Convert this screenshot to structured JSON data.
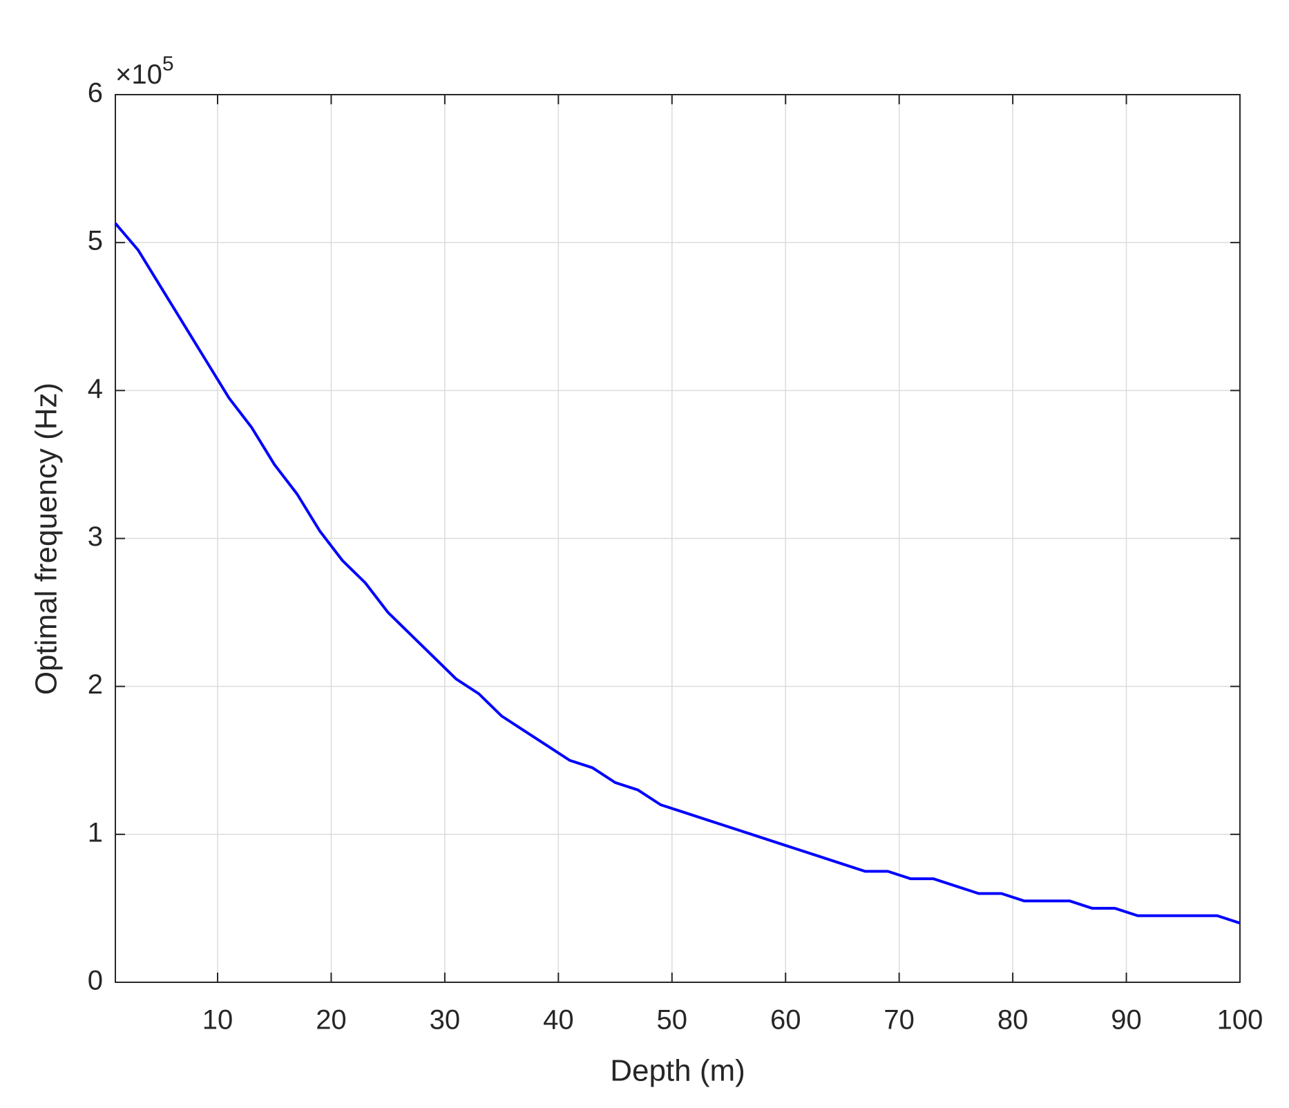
{
  "chart_data": {
    "type": "line",
    "xlabel": "Depth (m)",
    "ylabel": "Optimal frequency (Hz)",
    "y_multiplier": {
      "base": "×10",
      "exponent": "5"
    },
    "x": [
      1,
      3,
      5,
      7,
      9,
      11,
      13,
      15,
      17,
      19,
      21,
      23,
      25,
      27,
      29,
      31,
      33,
      35,
      37,
      39,
      41,
      43,
      45,
      47,
      49,
      51,
      53,
      55,
      57,
      59,
      61,
      63,
      65,
      67,
      69,
      71,
      73,
      75,
      77,
      79,
      81,
      83,
      85,
      87,
      89,
      91,
      93,
      95,
      97,
      98,
      100
    ],
    "series": [
      {
        "name": "Optimal frequency",
        "color": "#0000ff",
        "values": [
          5.13,
          4.95,
          4.7,
          4.45,
          4.2,
          3.95,
          3.75,
          3.5,
          3.3,
          3.05,
          2.85,
          2.7,
          2.5,
          2.35,
          2.2,
          2.05,
          1.95,
          1.8,
          1.7,
          1.6,
          1.5,
          1.45,
          1.35,
          1.3,
          1.2,
          1.15,
          1.1,
          1.05,
          1.0,
          0.95,
          0.9,
          0.85,
          0.8,
          0.75,
          0.75,
          0.7,
          0.7,
          0.65,
          0.6,
          0.6,
          0.55,
          0.55,
          0.55,
          0.5,
          0.5,
          0.45,
          0.45,
          0.45,
          0.45,
          0.45,
          0.4
        ]
      }
    ],
    "xlim": [
      1,
      100
    ],
    "xticks": [
      10,
      20,
      30,
      40,
      50,
      60,
      70,
      80,
      90,
      100
    ],
    "ylim": [
      0,
      6
    ],
    "yticks": [
      0,
      1,
      2,
      3,
      4,
      5,
      6
    ],
    "grid": true
  }
}
